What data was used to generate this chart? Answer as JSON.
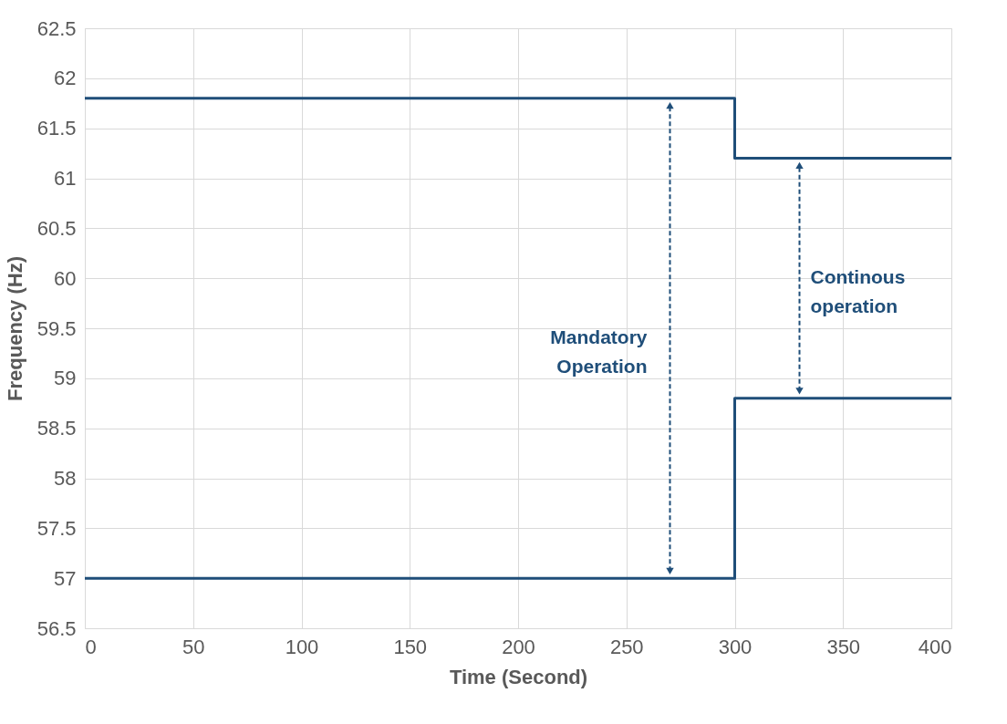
{
  "chart_data": {
    "type": "line",
    "xlabel": "Time (Second)",
    "ylabel": "Frequency (Hz)",
    "xlim": [
      0,
      400
    ],
    "xticks": [
      0,
      50,
      100,
      150,
      200,
      250,
      300,
      350,
      400
    ],
    "ylim": [
      56.5,
      62.5
    ],
    "yticks": [
      56.5,
      57,
      57.5,
      58,
      58.5,
      59,
      59.5,
      60,
      60.5,
      61,
      61.5,
      62,
      62.5
    ],
    "grid": true,
    "legend": false,
    "marker": "none",
    "line_style": "solid",
    "series": [
      {
        "color": "#1f4e79",
        "x": [
          0,
          300,
          300,
          400
        ],
        "values": [
          61.8,
          61.8,
          61.2,
          61.2
        ]
      },
      {
        "color": "#1f4e79",
        "x": [
          0,
          300,
          300,
          400
        ],
        "values": [
          57,
          57,
          58.8,
          58.8
        ]
      }
    ],
    "annotations": [
      "Mandatory\nOperation",
      "Continous\noperation"
    ]
  }
}
